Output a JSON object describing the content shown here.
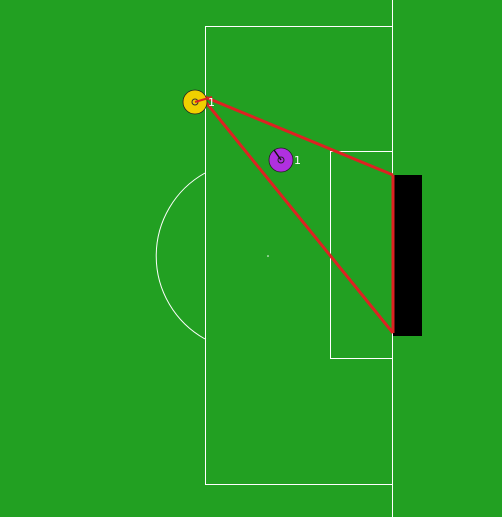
{
  "colors": {
    "pitch": "#22a022",
    "lines": "#ffffff",
    "goal": "#000000",
    "shot_lines": "#dd2222",
    "team_yellow": "#f0d000",
    "team_purple": "#b030e0"
  },
  "players": [
    {
      "team": "yellow",
      "label": "1",
      "icon": "player-marker-icon"
    },
    {
      "team": "purple",
      "label": "1",
      "icon": "player-marker-icon"
    }
  ],
  "overlay": {
    "shot_cone": "triangle-from-yellow-player-to-goal-posts"
  }
}
